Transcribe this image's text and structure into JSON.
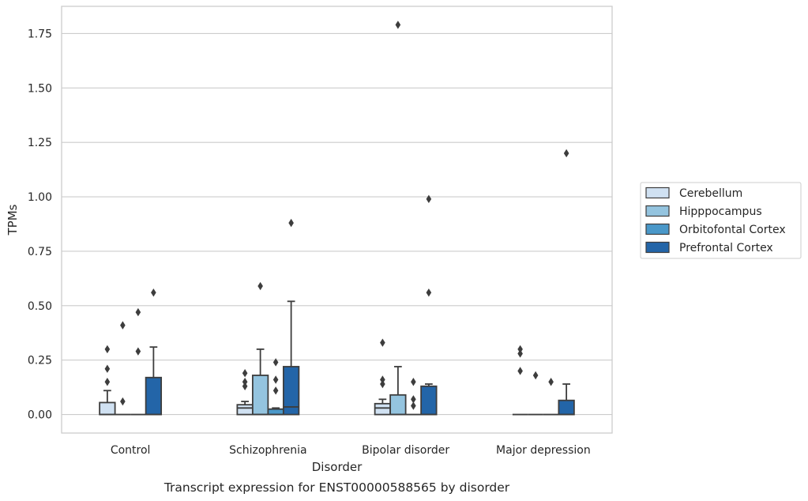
{
  "chart_data": {
    "type": "box",
    "title": "",
    "caption": "Transcript expression for ENST00000588565 by disorder",
    "xlabel": "Disorder",
    "ylabel": "TPMs",
    "ylim": [
      -0.085,
      1.875
    ],
    "yticks": [
      "0.00",
      "0.25",
      "0.50",
      "0.75",
      "1.00",
      "1.25",
      "1.50",
      "1.75"
    ],
    "ytick_values": [
      0,
      0.25,
      0.5,
      0.75,
      1.0,
      1.25,
      1.5,
      1.75
    ],
    "grid": "horizontal",
    "legend_position": "right",
    "categories": [
      "Control",
      "Schizophrenia",
      "Bipolar disorder",
      "Major depression"
    ],
    "series": [
      {
        "name": "Cerebellum",
        "color": "#d0e1f2",
        "boxes": [
          {
            "q1": 0,
            "median": 0,
            "q3": 0.055,
            "whislo": 0,
            "whishi": 0.11,
            "fliers": [
              0.15,
              0.21,
              0.3
            ]
          },
          {
            "q1": 0,
            "median": 0.03,
            "q3": 0.045,
            "whislo": 0,
            "whishi": 0.06,
            "fliers": [
              0.13,
              0.15,
              0.19
            ]
          },
          {
            "q1": 0,
            "median": 0.03,
            "q3": 0.05,
            "whislo": 0,
            "whishi": 0.07,
            "fliers": [
              0.14,
              0.16,
              0.33
            ]
          },
          {
            "q1": 0,
            "median": 0,
            "q3": 0,
            "whislo": 0,
            "whishi": 0,
            "fliers": [
              0.2,
              0.28,
              0.3
            ]
          }
        ]
      },
      {
        "name": "Hipppocampus",
        "color": "#94c4df",
        "boxes": [
          {
            "q1": 0,
            "median": 0,
            "q3": 0,
            "whislo": 0,
            "whishi": 0,
            "fliers": [
              0.06,
              0.41
            ]
          },
          {
            "q1": 0,
            "median": 0,
            "q3": 0.18,
            "whislo": 0,
            "whishi": 0.3,
            "fliers": [
              0.59
            ]
          },
          {
            "q1": 0,
            "median": 0,
            "q3": 0.09,
            "whislo": 0,
            "whishi": 0.22,
            "fliers": [
              1.79
            ]
          },
          {
            "q1": 0,
            "median": 0,
            "q3": 0,
            "whislo": 0,
            "whishi": 0,
            "fliers": [
              0.18
            ]
          }
        ]
      },
      {
        "name": "Orbitofontal Cortex",
        "color": "#4a98c9",
        "boxes": [
          {
            "q1": 0,
            "median": 0,
            "q3": 0,
            "whislo": 0,
            "whishi": 0,
            "fliers": [
              0.29,
              0.47
            ]
          },
          {
            "q1": 0,
            "median": 0,
            "q3": 0.025,
            "whislo": 0,
            "whishi": 0.03,
            "fliers": [
              0.11,
              0.16,
              0.24
            ]
          },
          {
            "q1": 0,
            "median": 0,
            "q3": 0,
            "whislo": 0,
            "whishi": 0,
            "fliers": [
              0.04,
              0.07,
              0.15
            ]
          },
          {
            "q1": 0,
            "median": 0,
            "q3": 0,
            "whislo": 0,
            "whishi": 0,
            "fliers": [
              0.15
            ]
          }
        ]
      },
      {
        "name": "Prefrontal Cortex",
        "color": "#2365a8",
        "boxes": [
          {
            "q1": 0,
            "median": 0,
            "q3": 0.17,
            "whislo": 0,
            "whishi": 0.31,
            "fliers": [
              0.56
            ]
          },
          {
            "q1": 0,
            "median": 0.035,
            "q3": 0.22,
            "whislo": 0,
            "whishi": 0.52,
            "fliers": [
              0.88
            ]
          },
          {
            "q1": 0,
            "median": 0,
            "q3": 0.13,
            "whislo": 0,
            "whishi": 0.14,
            "fliers": [
              0.56,
              0.99
            ]
          },
          {
            "q1": 0,
            "median": 0,
            "q3": 0.065,
            "whislo": 0,
            "whishi": 0.14,
            "fliers": [
              1.2
            ]
          }
        ]
      }
    ]
  }
}
